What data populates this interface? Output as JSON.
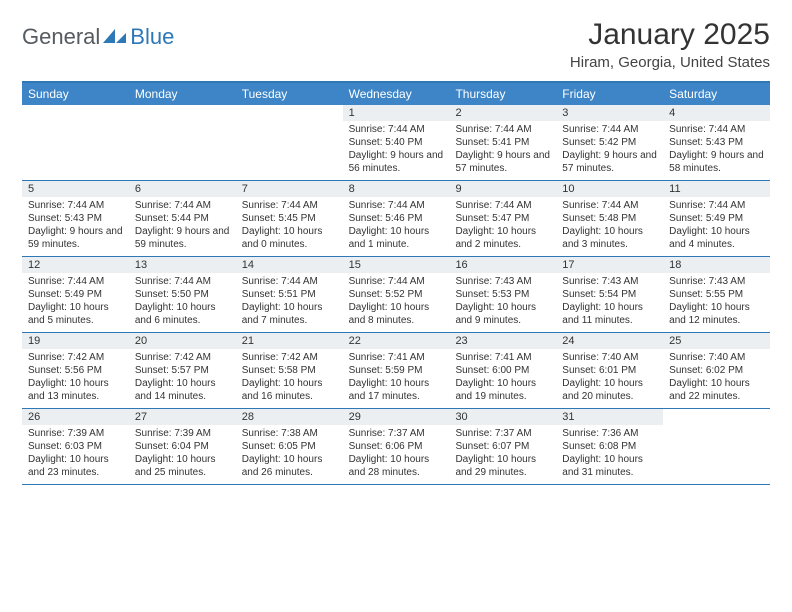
{
  "brand": {
    "general": "General",
    "blue": "Blue"
  },
  "title": "January 2025",
  "location": "Hiram, Georgia, United States",
  "colors": {
    "header_bg": "#3d85c6",
    "border": "#2f78b7",
    "daynum_bg": "#eceff1",
    "logo_blue": "#2f78b7",
    "logo_gray": "#555b60"
  },
  "day_names": [
    "Sunday",
    "Monday",
    "Tuesday",
    "Wednesday",
    "Thursday",
    "Friday",
    "Saturday"
  ],
  "weeks": [
    [
      {
        "n": "",
        "sr": "",
        "ss": "",
        "dl": ""
      },
      {
        "n": "",
        "sr": "",
        "ss": "",
        "dl": ""
      },
      {
        "n": "",
        "sr": "",
        "ss": "",
        "dl": ""
      },
      {
        "n": "1",
        "sr": "Sunrise: 7:44 AM",
        "ss": "Sunset: 5:40 PM",
        "dl": "Daylight: 9 hours and 56 minutes."
      },
      {
        "n": "2",
        "sr": "Sunrise: 7:44 AM",
        "ss": "Sunset: 5:41 PM",
        "dl": "Daylight: 9 hours and 57 minutes."
      },
      {
        "n": "3",
        "sr": "Sunrise: 7:44 AM",
        "ss": "Sunset: 5:42 PM",
        "dl": "Daylight: 9 hours and 57 minutes."
      },
      {
        "n": "4",
        "sr": "Sunrise: 7:44 AM",
        "ss": "Sunset: 5:43 PM",
        "dl": "Daylight: 9 hours and 58 minutes."
      }
    ],
    [
      {
        "n": "5",
        "sr": "Sunrise: 7:44 AM",
        "ss": "Sunset: 5:43 PM",
        "dl": "Daylight: 9 hours and 59 minutes."
      },
      {
        "n": "6",
        "sr": "Sunrise: 7:44 AM",
        "ss": "Sunset: 5:44 PM",
        "dl": "Daylight: 9 hours and 59 minutes."
      },
      {
        "n": "7",
        "sr": "Sunrise: 7:44 AM",
        "ss": "Sunset: 5:45 PM",
        "dl": "Daylight: 10 hours and 0 minutes."
      },
      {
        "n": "8",
        "sr": "Sunrise: 7:44 AM",
        "ss": "Sunset: 5:46 PM",
        "dl": "Daylight: 10 hours and 1 minute."
      },
      {
        "n": "9",
        "sr": "Sunrise: 7:44 AM",
        "ss": "Sunset: 5:47 PM",
        "dl": "Daylight: 10 hours and 2 minutes."
      },
      {
        "n": "10",
        "sr": "Sunrise: 7:44 AM",
        "ss": "Sunset: 5:48 PM",
        "dl": "Daylight: 10 hours and 3 minutes."
      },
      {
        "n": "11",
        "sr": "Sunrise: 7:44 AM",
        "ss": "Sunset: 5:49 PM",
        "dl": "Daylight: 10 hours and 4 minutes."
      }
    ],
    [
      {
        "n": "12",
        "sr": "Sunrise: 7:44 AM",
        "ss": "Sunset: 5:49 PM",
        "dl": "Daylight: 10 hours and 5 minutes."
      },
      {
        "n": "13",
        "sr": "Sunrise: 7:44 AM",
        "ss": "Sunset: 5:50 PM",
        "dl": "Daylight: 10 hours and 6 minutes."
      },
      {
        "n": "14",
        "sr": "Sunrise: 7:44 AM",
        "ss": "Sunset: 5:51 PM",
        "dl": "Daylight: 10 hours and 7 minutes."
      },
      {
        "n": "15",
        "sr": "Sunrise: 7:44 AM",
        "ss": "Sunset: 5:52 PM",
        "dl": "Daylight: 10 hours and 8 minutes."
      },
      {
        "n": "16",
        "sr": "Sunrise: 7:43 AM",
        "ss": "Sunset: 5:53 PM",
        "dl": "Daylight: 10 hours and 9 minutes."
      },
      {
        "n": "17",
        "sr": "Sunrise: 7:43 AM",
        "ss": "Sunset: 5:54 PM",
        "dl": "Daylight: 10 hours and 11 minutes."
      },
      {
        "n": "18",
        "sr": "Sunrise: 7:43 AM",
        "ss": "Sunset: 5:55 PM",
        "dl": "Daylight: 10 hours and 12 minutes."
      }
    ],
    [
      {
        "n": "19",
        "sr": "Sunrise: 7:42 AM",
        "ss": "Sunset: 5:56 PM",
        "dl": "Daylight: 10 hours and 13 minutes."
      },
      {
        "n": "20",
        "sr": "Sunrise: 7:42 AM",
        "ss": "Sunset: 5:57 PM",
        "dl": "Daylight: 10 hours and 14 minutes."
      },
      {
        "n": "21",
        "sr": "Sunrise: 7:42 AM",
        "ss": "Sunset: 5:58 PM",
        "dl": "Daylight: 10 hours and 16 minutes."
      },
      {
        "n": "22",
        "sr": "Sunrise: 7:41 AM",
        "ss": "Sunset: 5:59 PM",
        "dl": "Daylight: 10 hours and 17 minutes."
      },
      {
        "n": "23",
        "sr": "Sunrise: 7:41 AM",
        "ss": "Sunset: 6:00 PM",
        "dl": "Daylight: 10 hours and 19 minutes."
      },
      {
        "n": "24",
        "sr": "Sunrise: 7:40 AM",
        "ss": "Sunset: 6:01 PM",
        "dl": "Daylight: 10 hours and 20 minutes."
      },
      {
        "n": "25",
        "sr": "Sunrise: 7:40 AM",
        "ss": "Sunset: 6:02 PM",
        "dl": "Daylight: 10 hours and 22 minutes."
      }
    ],
    [
      {
        "n": "26",
        "sr": "Sunrise: 7:39 AM",
        "ss": "Sunset: 6:03 PM",
        "dl": "Daylight: 10 hours and 23 minutes."
      },
      {
        "n": "27",
        "sr": "Sunrise: 7:39 AM",
        "ss": "Sunset: 6:04 PM",
        "dl": "Daylight: 10 hours and 25 minutes."
      },
      {
        "n": "28",
        "sr": "Sunrise: 7:38 AM",
        "ss": "Sunset: 6:05 PM",
        "dl": "Daylight: 10 hours and 26 minutes."
      },
      {
        "n": "29",
        "sr": "Sunrise: 7:37 AM",
        "ss": "Sunset: 6:06 PM",
        "dl": "Daylight: 10 hours and 28 minutes."
      },
      {
        "n": "30",
        "sr": "Sunrise: 7:37 AM",
        "ss": "Sunset: 6:07 PM",
        "dl": "Daylight: 10 hours and 29 minutes."
      },
      {
        "n": "31",
        "sr": "Sunrise: 7:36 AM",
        "ss": "Sunset: 6:08 PM",
        "dl": "Daylight: 10 hours and 31 minutes."
      },
      {
        "n": "",
        "sr": "",
        "ss": "",
        "dl": ""
      }
    ]
  ]
}
